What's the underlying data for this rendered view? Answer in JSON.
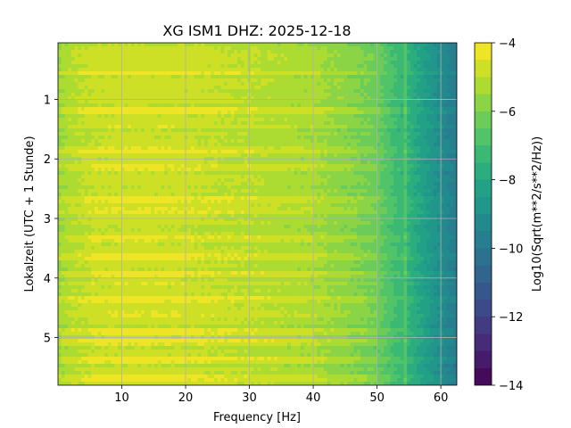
{
  "chart_data": {
    "type": "heatmap",
    "title": "XG ISM1  DHZ: 2025-12-18",
    "xlabel": "Frequency [Hz]",
    "ylabel": "Lokalzeit (UTC + 1 Stunde)",
    "xlim": [
      0,
      62.5
    ],
    "ylim": [
      5.8,
      0.05
    ],
    "x_ticks": [
      10,
      20,
      30,
      40,
      50,
      60
    ],
    "x_tick_labels": [
      "10",
      "20",
      "30",
      "40",
      "50",
      "60"
    ],
    "y_ticks": [
      1,
      2,
      3,
      4,
      5
    ],
    "y_tick_labels": [
      "1",
      "2",
      "3",
      "4",
      "5"
    ],
    "grid": true,
    "colorbar": {
      "label": "Log10(Sqrt(m**2/s**2/Hz))",
      "range": [
        -14,
        -4
      ],
      "ticks": [
        -4,
        -6,
        -8,
        -10,
        -12,
        -14
      ],
      "tick_labels": [
        "−4",
        "−6",
        "−8",
        "−10",
        "−12",
        "−14"
      ],
      "levels": 20,
      "colormap": "viridis"
    },
    "value_profile": {
      "frequency_hz": [
        0,
        2,
        6,
        12,
        20,
        30,
        40,
        45,
        50,
        53,
        55,
        58,
        60,
        62.5
      ],
      "log10_amplitude": [
        -5.6,
        -5.2,
        -4.9,
        -4.8,
        -4.9,
        -5.1,
        -5.4,
        -5.8,
        -6.3,
        -7.2,
        -7.6,
        -8.6,
        -9.2,
        -9.9
      ]
    },
    "bright_time_bands_hours": [
      0.55,
      1.2,
      1.45,
      1.85,
      2.15,
      2.7,
      2.85,
      3.35,
      3.65,
      3.95,
      4.1,
      4.35,
      4.6,
      4.9,
      5.1,
      5.4,
      5.7
    ],
    "narrow_feature_hz": 54.3
  }
}
